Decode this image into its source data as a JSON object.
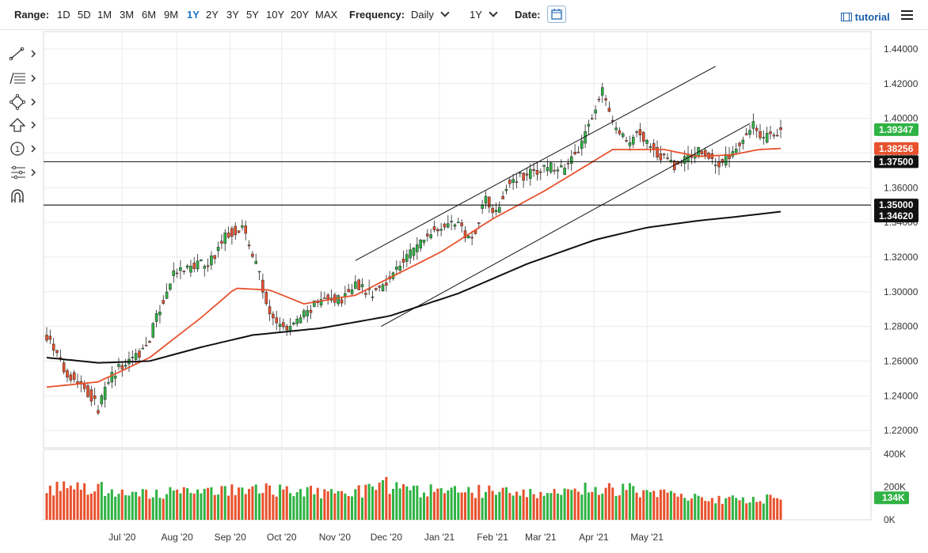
{
  "toolbar": {
    "range_label": "Range:",
    "ranges": [
      "1D",
      "5D",
      "1M",
      "3M",
      "6M",
      "9M",
      "1Y",
      "2Y",
      "3Y",
      "5Y",
      "10Y",
      "20Y",
      "MAX"
    ],
    "active_range": "1Y",
    "frequency_label": "Frequency:",
    "frequency_value": "Daily",
    "period_value": "1Y",
    "date_label": "Date:",
    "tutorial_label": "tutorial"
  },
  "sidebar_tools": [
    "trend-line-icon",
    "fib-retracement-icon",
    "shape-icon",
    "arrow-up-icon",
    "counter-icon",
    "pitchfork-icon",
    "magnet-icon"
  ],
  "sidebar_counter_value": "1",
  "chart_data": {
    "type": "candlestick",
    "x_labels": [
      "Jul '20",
      "Aug '20",
      "Sep '20",
      "Oct '20",
      "Nov '20",
      "Dec '20",
      "Jan '21",
      "Feb '21",
      "Mar '21",
      "Apr '21",
      "May '21"
    ],
    "y_ticks": [
      "1.22000",
      "1.24000",
      "1.26000",
      "1.28000",
      "1.30000",
      "1.32000",
      "1.34000",
      "1.36000",
      "1.38000",
      "1.40000",
      "1.42000",
      "1.44000"
    ],
    "ylim": [
      1.21,
      1.45
    ],
    "price_path": [
      [
        0,
        1.275
      ],
      [
        10,
        1.255
      ],
      [
        22,
        1.245
      ],
      [
        30,
        1.233
      ],
      [
        38,
        1.252
      ],
      [
        50,
        1.262
      ],
      [
        58,
        1.268
      ],
      [
        66,
        1.29
      ],
      [
        74,
        1.31
      ],
      [
        84,
        1.314
      ],
      [
        96,
        1.318
      ],
      [
        104,
        1.332
      ],
      [
        114,
        1.338
      ],
      [
        124,
        1.31
      ],
      [
        130,
        1.285
      ],
      [
        140,
        1.278
      ],
      [
        150,
        1.287
      ],
      [
        160,
        1.295
      ],
      [
        172,
        1.296
      ],
      [
        180,
        1.305
      ],
      [
        190,
        1.298
      ],
      [
        204,
        1.313
      ],
      [
        214,
        1.325
      ],
      [
        228,
        1.338
      ],
      [
        238,
        1.34
      ],
      [
        248,
        1.33
      ],
      [
        256,
        1.355
      ],
      [
        262,
        1.345
      ],
      [
        270,
        1.365
      ],
      [
        282,
        1.368
      ],
      [
        292,
        1.372
      ],
      [
        302,
        1.37
      ],
      [
        314,
        1.39
      ],
      [
        324,
        1.416
      ],
      [
        330,
        1.398
      ],
      [
        338,
        1.385
      ],
      [
        346,
        1.392
      ],
      [
        356,
        1.38
      ],
      [
        366,
        1.372
      ],
      [
        380,
        1.382
      ],
      [
        392,
        1.373
      ],
      [
        402,
        1.383
      ],
      [
        412,
        1.398
      ],
      [
        418,
        1.388
      ],
      [
        428,
        1.393
      ]
    ],
    "ma_red": [
      [
        0,
        1.245
      ],
      [
        30,
        1.248
      ],
      [
        60,
        1.262
      ],
      [
        90,
        1.285
      ],
      [
        110,
        1.302
      ],
      [
        130,
        1.301
      ],
      [
        150,
        1.293
      ],
      [
        180,
        1.298
      ],
      [
        200,
        1.308
      ],
      [
        230,
        1.323
      ],
      [
        260,
        1.342
      ],
      [
        290,
        1.358
      ],
      [
        310,
        1.37
      ],
      [
        330,
        1.382
      ],
      [
        360,
        1.382
      ],
      [
        380,
        1.378
      ],
      [
        400,
        1.379
      ],
      [
        415,
        1.382
      ],
      [
        428,
        1.3826
      ]
    ],
    "ma_black": [
      [
        0,
        1.262
      ],
      [
        30,
        1.259
      ],
      [
        60,
        1.26
      ],
      [
        90,
        1.268
      ],
      [
        120,
        1.275
      ],
      [
        160,
        1.279
      ],
      [
        200,
        1.286
      ],
      [
        240,
        1.299
      ],
      [
        280,
        1.316
      ],
      [
        320,
        1.33
      ],
      [
        350,
        1.337
      ],
      [
        380,
        1.341
      ],
      [
        400,
        1.343
      ],
      [
        428,
        1.3462
      ]
    ],
    "channel_upper": [
      [
        180,
        1.318
      ],
      [
        390,
        1.43
      ]
    ],
    "channel_lower": [
      [
        195,
        1.28
      ],
      [
        410,
        1.397
      ]
    ],
    "support_lines": [
      1.375,
      1.35
    ],
    "price_labels": [
      {
        "value": 1.39347,
        "text": "1.39347",
        "color": "#2fb344"
      },
      {
        "value": 1.38256,
        "text": "1.38256",
        "color": "#e8512d"
      },
      {
        "value": 1.375,
        "text": "1.37500",
        "color": "#111111"
      },
      {
        "value": 1.35,
        "text": "1.35000",
        "color": "#111111"
      },
      {
        "value": 1.3462,
        "text": "1.34620",
        "color": "#111111"
      }
    ],
    "volume": {
      "ticks": [
        "400K",
        "200K",
        "0K"
      ],
      "ylim": [
        0,
        400000
      ],
      "last_label": "134K",
      "last_color": "#2fb344",
      "path": [
        [
          0,
          190000
        ],
        [
          30,
          195000
        ],
        [
          60,
          160000
        ],
        [
          90,
          170000
        ],
        [
          120,
          190000
        ],
        [
          150,
          175000
        ],
        [
          180,
          160000
        ],
        [
          195,
          230000
        ],
        [
          210,
          170000
        ],
        [
          240,
          180000
        ],
        [
          270,
          160000
        ],
        [
          300,
          150000
        ],
        [
          320,
          200000
        ],
        [
          350,
          170000
        ],
        [
          380,
          130000
        ],
        [
          400,
          120000
        ],
        [
          428,
          134000
        ]
      ]
    },
    "colors": {
      "up": "#2fb344",
      "down": "#e8512d",
      "ma_fast": "#e8512d",
      "ma_slow": "#111111"
    }
  }
}
